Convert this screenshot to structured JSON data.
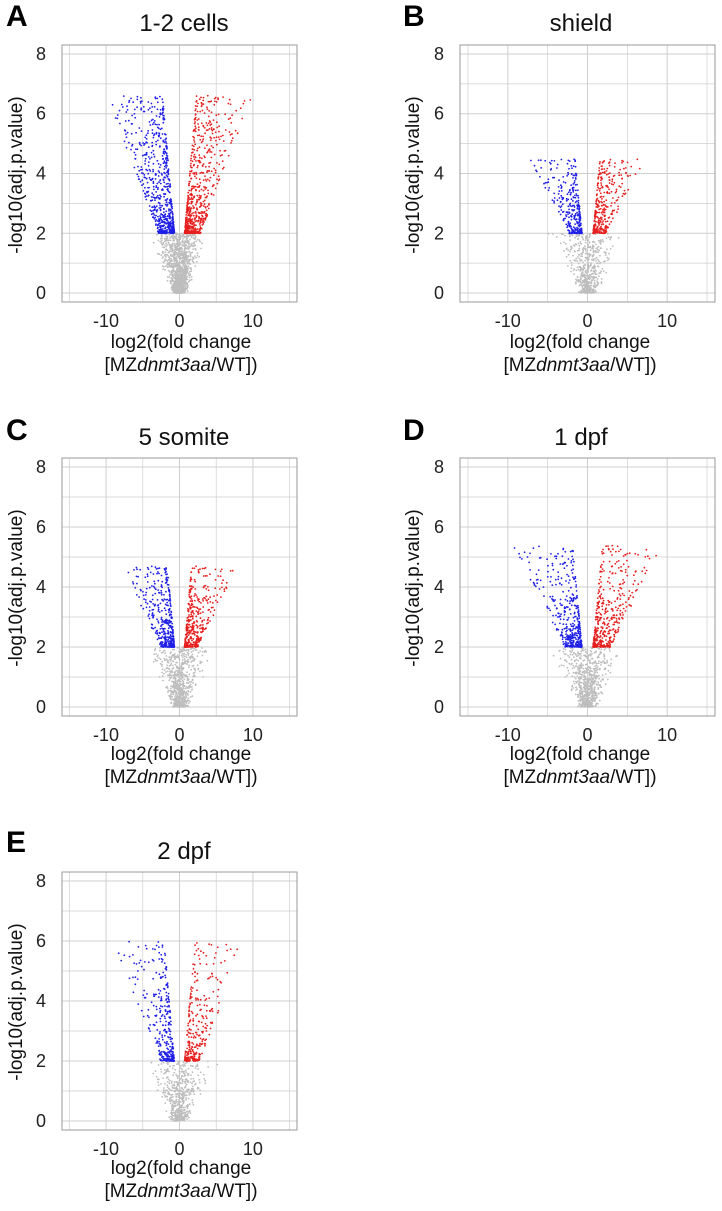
{
  "chart_data": [
    {
      "panel": "A",
      "title": "1-2 cells",
      "type": "scatter",
      "xlabel_line1": "log2(fold change",
      "xlabel_line2_prefix": "[MZ",
      "xlabel_line2_italic": "dnmt3aa",
      "xlabel_line2_suffix": "/WT])",
      "ylabel": "-log10(adj.p.value)",
      "xlim": [
        -16,
        16
      ],
      "ylim": [
        -0.3,
        8.3
      ],
      "xticks": [
        -10,
        0,
        10
      ],
      "yticks": [
        0,
        2,
        4,
        6,
        8
      ],
      "threshold_y": 2,
      "max_y": 6.6,
      "max_abs_x": 12,
      "n_points": 2600,
      "spread": 1.25,
      "colors": {
        "down": "#1f1fe6",
        "up": "#e61f1f",
        "ns": "#bdbdbd",
        "grid": "#cfcfcf"
      }
    },
    {
      "panel": "B",
      "title": "shield",
      "type": "scatter",
      "xlabel_line1": "log2(fold change",
      "xlabel_line2_prefix": "[MZ",
      "xlabel_line2_italic": "dnmt3aa",
      "xlabel_line2_suffix": "/WT])",
      "ylabel": "-log10(adj.p.value)",
      "xlim": [
        -16,
        16
      ],
      "ylim": [
        -0.3,
        8.3
      ],
      "xticks": [
        -10,
        0,
        10
      ],
      "yticks": [
        0,
        2,
        4,
        6,
        8
      ],
      "threshold_y": 2,
      "max_y": 4.5,
      "max_abs_x": 9,
      "n_points": 1200,
      "spread": 1.6,
      "colors": {
        "down": "#1f1fe6",
        "up": "#e61f1f",
        "ns": "#bdbdbd",
        "grid": "#cfcfcf"
      }
    },
    {
      "panel": "C",
      "title": "5 somite",
      "type": "scatter",
      "xlabel_line1": "log2(fold change",
      "xlabel_line2_prefix": "[MZ",
      "xlabel_line2_italic": "dnmt3aa",
      "xlabel_line2_suffix": "/WT])",
      "ylabel": "-log10(adj.p.value)",
      "xlim": [
        -16,
        16
      ],
      "ylim": [
        -0.3,
        8.3
      ],
      "xticks": [
        -10,
        0,
        10
      ],
      "yticks": [
        0,
        2,
        4,
        6,
        8
      ],
      "threshold_y": 2,
      "max_y": 4.7,
      "max_abs_x": 10,
      "n_points": 1500,
      "spread": 1.5,
      "colors": {
        "down": "#1f1fe6",
        "up": "#e61f1f",
        "ns": "#bdbdbd",
        "grid": "#cfcfcf"
      }
    },
    {
      "panel": "D",
      "title": "1 dpf",
      "type": "scatter",
      "xlabel_line1": "log2(fold change",
      "xlabel_line2_prefix": "[MZ",
      "xlabel_line2_italic": "dnmt3aa",
      "xlabel_line2_suffix": "/WT])",
      "ylabel": "-log10(adj.p.value)",
      "xlim": [
        -16,
        16
      ],
      "ylim": [
        -0.3,
        8.3
      ],
      "xticks": [
        -10,
        0,
        10
      ],
      "yticks": [
        0,
        2,
        4,
        6,
        8
      ],
      "threshold_y": 2,
      "max_y": 5.4,
      "max_abs_x": 12,
      "n_points": 1500,
      "spread": 1.5,
      "colors": {
        "down": "#1f1fe6",
        "up": "#e61f1f",
        "ns": "#bdbdbd",
        "grid": "#cfcfcf"
      }
    },
    {
      "panel": "E",
      "title": "2 dpf",
      "type": "scatter",
      "xlabel_line1": "log2(fold change",
      "xlabel_line2_prefix": "[MZ",
      "xlabel_line2_italic": "dnmt3aa",
      "xlabel_line2_suffix": "/WT])",
      "ylabel": "-log10(adj.p.value)",
      "xlim": [
        -16,
        16
      ],
      "ylim": [
        -0.3,
        8.3
      ],
      "xticks": [
        -10,
        0,
        10
      ],
      "yticks": [
        0,
        2,
        4,
        6,
        8
      ],
      "threshold_y": 2,
      "max_y": 6.0,
      "max_abs_x": 11,
      "n_points": 1100,
      "spread": 1.6,
      "colors": {
        "down": "#1f1fe6",
        "up": "#e61f1f",
        "ns": "#bdbdbd",
        "grid": "#cfcfcf"
      }
    }
  ]
}
